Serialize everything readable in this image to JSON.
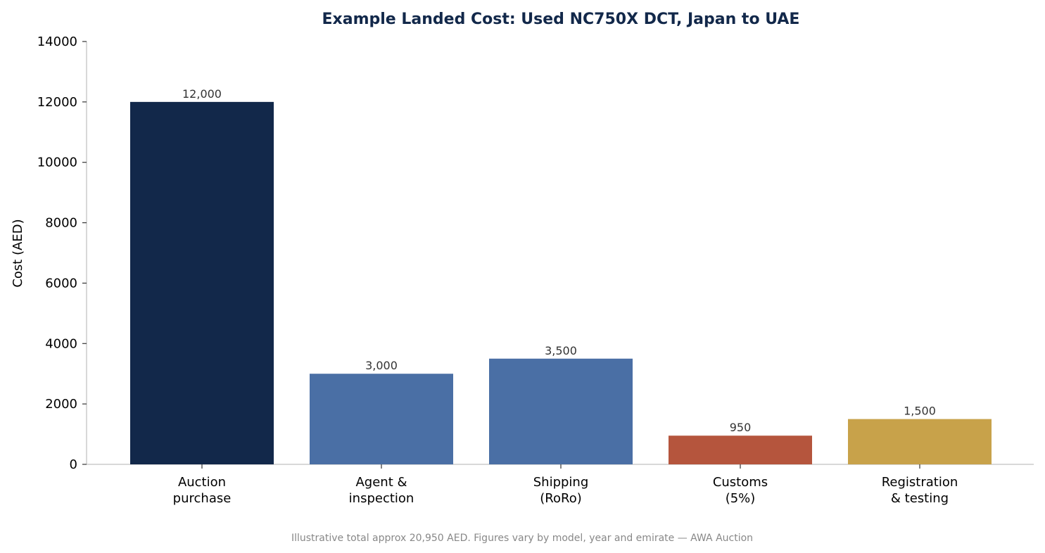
{
  "chart_data": {
    "type": "bar",
    "title": "Example Landed Cost: Used NC750X DCT, Japan to UAE",
    "xlabel": "",
    "ylabel": "Cost (AED)",
    "ylim": [
      0,
      14000
    ],
    "yticks": [
      "0",
      "2000",
      "4000",
      "6000",
      "8000",
      "10000",
      "12000",
      "14000"
    ],
    "categories": [
      [
        "Auction",
        "purchase"
      ],
      [
        "Agent &",
        "inspection"
      ],
      [
        "Shipping",
        "(RoRo)"
      ],
      [
        "Customs",
        "(5%)"
      ],
      [
        "Registration",
        "& testing"
      ]
    ],
    "values": [
      12000,
      3000,
      3500,
      950,
      1500
    ],
    "value_labels": [
      "12,000",
      "3,000",
      "3,500",
      "950",
      "1,500"
    ],
    "colors": [
      "#12284a",
      "#4a6fa5",
      "#4a6fa5",
      "#b5553d",
      "#c8a24a"
    ],
    "grid": false,
    "footnote": "Illustrative total approx 20,950 AED. Figures vary by model, year and emirate — AWA Auction"
  }
}
